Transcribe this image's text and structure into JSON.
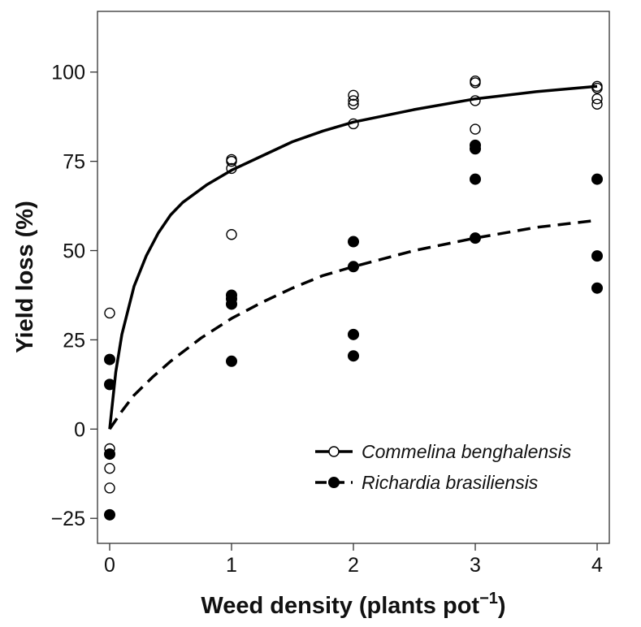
{
  "chart_data": {
    "type": "scatter",
    "xlabel": "Weed density (plants pot",
    "xlabel_superscript": "−1",
    "xlabel_close": ")",
    "ylabel": "Yield loss (%)",
    "xlim": [
      -0.1,
      4.1
    ],
    "ylim": [
      -32,
      117
    ],
    "x_ticks": [
      0,
      1,
      2,
      3,
      4
    ],
    "x_tick_labels": [
      "0",
      "1",
      "2",
      "3",
      "4"
    ],
    "y_ticks": [
      -25,
      0,
      25,
      50,
      75,
      100
    ],
    "y_tick_labels": [
      "−25",
      "0",
      "25",
      "50",
      "75",
      "100"
    ],
    "grid": false,
    "legend_position": "bottom-right",
    "series": [
      {
        "name": "Commelina benghalensis",
        "marker": "open-circle",
        "line_style": "solid",
        "color": "#000000",
        "points": [
          {
            "x": 0,
            "y": 32.5
          },
          {
            "x": 0,
            "y": -5.5
          },
          {
            "x": 0,
            "y": -11
          },
          {
            "x": 0,
            "y": -16.5
          },
          {
            "x": 1,
            "y": 75.5
          },
          {
            "x": 1,
            "y": 75
          },
          {
            "x": 1,
            "y": 73
          },
          {
            "x": 1,
            "y": 54.5
          },
          {
            "x": 2,
            "y": 93.5
          },
          {
            "x": 2,
            "y": 92
          },
          {
            "x": 2,
            "y": 91
          },
          {
            "x": 2,
            "y": 85.5
          },
          {
            "x": 3,
            "y": 97.5
          },
          {
            "x": 3,
            "y": 97
          },
          {
            "x": 3,
            "y": 92
          },
          {
            "x": 3,
            "y": 84
          },
          {
            "x": 4,
            "y": 96
          },
          {
            "x": 4,
            "y": 95.5
          },
          {
            "x": 4,
            "y": 92.5
          },
          {
            "x": 4,
            "y": 91
          }
        ],
        "fit": [
          {
            "x": 0,
            "y": 0
          },
          {
            "x": 0.05,
            "y": 16
          },
          {
            "x": 0.1,
            "y": 26.5
          },
          {
            "x": 0.2,
            "y": 40
          },
          {
            "x": 0.3,
            "y": 48.5
          },
          {
            "x": 0.4,
            "y": 55
          },
          {
            "x": 0.5,
            "y": 60
          },
          {
            "x": 0.6,
            "y": 63.5
          },
          {
            "x": 0.8,
            "y": 68.5
          },
          {
            "x": 1,
            "y": 72.5
          },
          {
            "x": 1.25,
            "y": 76.5
          },
          {
            "x": 1.5,
            "y": 80.5
          },
          {
            "x": 1.75,
            "y": 83.5
          },
          {
            "x": 2,
            "y": 86
          },
          {
            "x": 2.5,
            "y": 89.5
          },
          {
            "x": 3,
            "y": 92.5
          },
          {
            "x": 3.5,
            "y": 94.5
          },
          {
            "x": 4,
            "y": 96
          }
        ]
      },
      {
        "name": "Richardia brasiliensis",
        "marker": "filled-circle",
        "line_style": "dashed",
        "color": "#000000",
        "points": [
          {
            "x": 0,
            "y": 19.5
          },
          {
            "x": 0,
            "y": 12.5
          },
          {
            "x": 0,
            "y": -7
          },
          {
            "x": 0,
            "y": -24
          },
          {
            "x": 1,
            "y": 37.5
          },
          {
            "x": 1,
            "y": 36.5
          },
          {
            "x": 1,
            "y": 35
          },
          {
            "x": 1,
            "y": 19
          },
          {
            "x": 2,
            "y": 52.5
          },
          {
            "x": 2,
            "y": 45.5
          },
          {
            "x": 2,
            "y": 26.5
          },
          {
            "x": 2,
            "y": 20.5
          },
          {
            "x": 3,
            "y": 79.5
          },
          {
            "x": 3,
            "y": 78.5
          },
          {
            "x": 3,
            "y": 70
          },
          {
            "x": 3,
            "y": 53.5
          },
          {
            "x": 4,
            "y": 70
          },
          {
            "x": 4,
            "y": 48.5
          },
          {
            "x": 4,
            "y": 39.5
          }
        ],
        "fit": [
          {
            "x": 0,
            "y": 0
          },
          {
            "x": 0.1,
            "y": 5
          },
          {
            "x": 0.2,
            "y": 9.5
          },
          {
            "x": 0.35,
            "y": 14.5
          },
          {
            "x": 0.5,
            "y": 19
          },
          {
            "x": 0.75,
            "y": 25.5
          },
          {
            "x": 1,
            "y": 31
          },
          {
            "x": 1.25,
            "y": 35.5
          },
          {
            "x": 1.5,
            "y": 39.5
          },
          {
            "x": 1.75,
            "y": 43
          },
          {
            "x": 2,
            "y": 45.5
          },
          {
            "x": 2.5,
            "y": 50
          },
          {
            "x": 3,
            "y": 53.5
          },
          {
            "x": 3.5,
            "y": 56.5
          },
          {
            "x": 4,
            "y": 58.5
          }
        ]
      }
    ]
  }
}
